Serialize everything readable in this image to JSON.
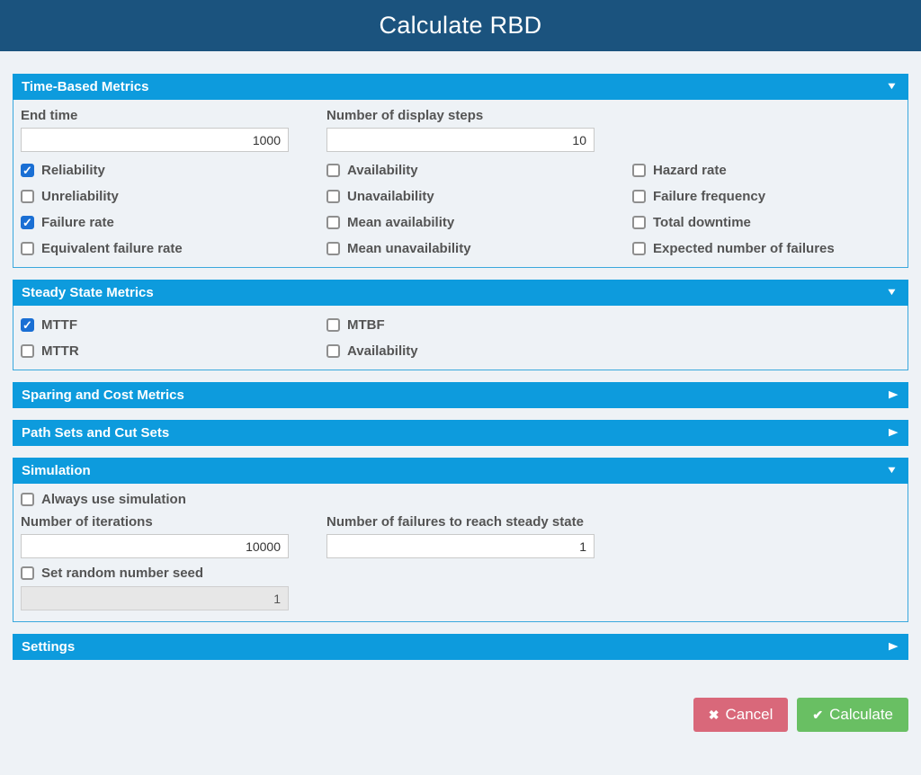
{
  "title": "Calculate RBD",
  "colors": {
    "header_bg": "#1b537e",
    "section_bg": "#0d9bdd",
    "body_border": "#3aa8dd",
    "page_bg": "#eef2f6",
    "checkbox_checked": "#1a6fd4",
    "cancel_bg": "#d9687a",
    "calculate_bg": "#69bf63"
  },
  "sections": {
    "time_based": {
      "title": "Time-Based Metrics",
      "arrow": "▼",
      "end_time": {
        "label": "End time",
        "value": "1000"
      },
      "display_steps": {
        "label": "Number of display steps",
        "value": "10"
      },
      "checks": [
        {
          "label": "Reliability",
          "checked": true
        },
        {
          "label": "Availability",
          "checked": false
        },
        {
          "label": "Hazard rate",
          "checked": false
        },
        {
          "label": "Unreliability",
          "checked": false
        },
        {
          "label": "Unavailability",
          "checked": false
        },
        {
          "label": "Failure frequency",
          "checked": false
        },
        {
          "label": "Failure rate",
          "checked": true
        },
        {
          "label": "Mean availability",
          "checked": false
        },
        {
          "label": "Total downtime",
          "checked": false
        },
        {
          "label": "Equivalent failure rate",
          "checked": false
        },
        {
          "label": "Mean unavailability",
          "checked": false
        },
        {
          "label": "Expected number of failures",
          "checked": false
        }
      ]
    },
    "steady_state": {
      "title": "Steady State Metrics",
      "arrow": "▼",
      "checks": [
        {
          "label": "MTTF",
          "checked": true
        },
        {
          "label": "MTBF",
          "checked": false
        },
        {
          "label": "MTTR",
          "checked": false
        },
        {
          "label": "Availability",
          "checked": false
        }
      ]
    },
    "sparing": {
      "title": "Sparing and Cost Metrics",
      "arrow": "▶"
    },
    "path_cut": {
      "title": "Path Sets and Cut Sets",
      "arrow": "▶"
    },
    "simulation": {
      "title": "Simulation",
      "arrow": "▼",
      "always_use": {
        "label": "Always use simulation",
        "checked": false
      },
      "iterations": {
        "label": "Number of iterations",
        "value": "10000"
      },
      "failures_steady": {
        "label": "Number of failures to reach steady state",
        "value": "1"
      },
      "random_seed": {
        "label": "Set random number seed",
        "checked": false
      },
      "seed_value": "1"
    },
    "settings": {
      "title": "Settings",
      "arrow": "▶"
    }
  },
  "footer": {
    "cancel": {
      "label": "Cancel",
      "icon": "✖"
    },
    "calculate": {
      "label": "Calculate",
      "icon": "✔"
    }
  }
}
